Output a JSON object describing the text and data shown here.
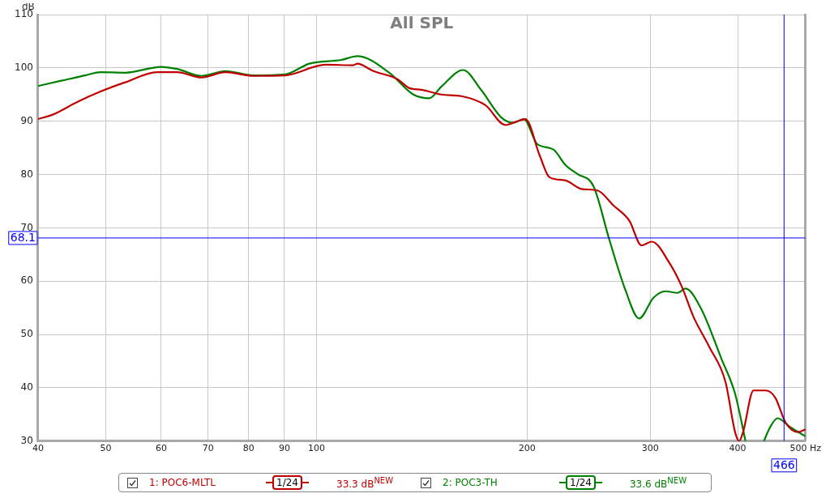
{
  "chart_data": {
    "type": "line",
    "title": "All SPL",
    "ylabel": "dB",
    "xlim": [
      40,
      500
    ],
    "ylim": [
      30,
      110
    ],
    "xticks": [
      40,
      50,
      60,
      70,
      80,
      90,
      100,
      200,
      300,
      400,
      {
        "value": 500,
        "label": "500 Hz"
      }
    ],
    "yticks": [
      30,
      40,
      50,
      60,
      70,
      80,
      90,
      100,
      110
    ],
    "log": "x",
    "grid": true,
    "legend": "bottom",
    "marker": "none",
    "line_style": "solid",
    "ref_lines": [
      {
        "axis": "y",
        "value": 68.1,
        "label": "68.1",
        "color": "#0000ff"
      },
      {
        "axis": "x",
        "value": 466,
        "label": "466",
        "color": "#0000ff"
      }
    ],
    "annotations": [
      "1/24",
      "33.3 dB$^{NEW}$",
      "1/24",
      "33.6 dB$^{NEW}$"
    ],
    "series": [
      {
        "name": "1: POC6-MLTL",
        "color": "#c00000",
        "x": [
          40,
          42.1,
          45.5,
          49.2,
          53.3,
          59.2,
          63.2,
          68.5,
          74.1,
          81.2,
          90.3,
          103,
          112.9,
          114.4,
          120.6,
          130.5,
          135.8,
          141.3,
          150.9,
          161.1,
          174.4,
          186.2,
          193.7,
          198.9,
          208.6,
          215.3,
          226.9,
          239.2,
          252.2,
          265.8,
          280.2,
          291.5,
          301.6,
          319.6,
          332.5,
          345.9,
          364.6,
          384.3,
          396.6,
          401.9,
          407.2,
          421.4,
          438.4,
          452.5,
          468.3,
          487.2,
          500
        ],
        "values": [
          90.4,
          91.3,
          93.6,
          95.6,
          97.3,
          99.2,
          99.2,
          98.2,
          99.2,
          98.5,
          98.6,
          100.6,
          100.5,
          100.8,
          99.4,
          97.9,
          96.2,
          95.9,
          95.0,
          94.7,
          93.0,
          89.3,
          90.0,
          90.4,
          83.5,
          79.5,
          78.9,
          77.3,
          77.0,
          74.2,
          71.3,
          66.7,
          67.4,
          63.4,
          59.1,
          53.3,
          47.6,
          41.1,
          31.7,
          30,
          31.7,
          39.5,
          39.5,
          38.2,
          33.5,
          31.7,
          32.2
        ]
      },
      {
        "name": "2: POC3-TH",
        "color": "#008000",
        "x": [
          40,
          43.2,
          46.7,
          49.2,
          53.3,
          60.0,
          63.2,
          68.5,
          74.1,
          81.2,
          90.3,
          97.7,
          108.5,
          114.4,
          127.1,
          137.6,
          145.0,
          150.9,
          162.0,
          172.1,
          183.8,
          191.2,
          197.9,
          206.9,
          218.1,
          226.9,
          236.1,
          248.9,
          262.3,
          276.5,
          289.2,
          303.2,
          315.4,
          328.1,
          336.9,
          355.1,
          379.3,
          396.6,
          410.5,
          425,
          436.1,
          444.2,
          456.1,
          474.5,
          500
        ],
        "values": [
          96.6,
          97.6,
          98.6,
          99.2,
          99.1,
          100.2,
          99.8,
          98.5,
          99.4,
          98.6,
          98.8,
          100.8,
          101.5,
          102.2,
          99.1,
          95.0,
          94.3,
          96.5,
          99.6,
          95.8,
          90.7,
          89.7,
          90.4,
          85.7,
          84.7,
          81.8,
          80.1,
          77.8,
          67.7,
          58.3,
          53.0,
          56.9,
          58.1,
          57.8,
          58.6,
          54.7,
          45.4,
          38.9,
          30,
          null,
          30,
          32.4,
          34.3,
          32.7,
          30.9
        ]
      }
    ]
  }
}
